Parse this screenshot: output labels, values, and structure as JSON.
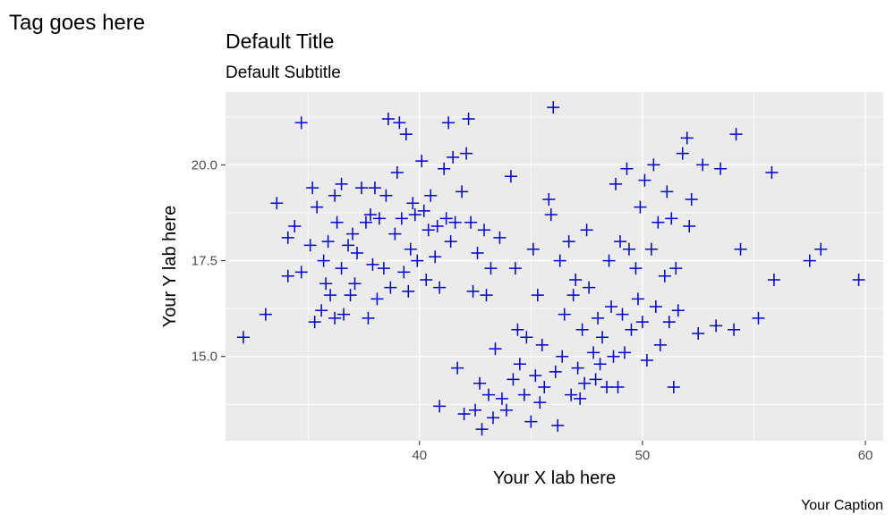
{
  "tag": "Tag goes here",
  "title": "Default Title",
  "subtitle": "Default Subtitle",
  "caption": "Your Caption",
  "colors": {
    "panel_background": "#ebebeb",
    "grid": "#ffffff",
    "points": "#0000cc",
    "tick_text": "#4d4d4d"
  },
  "chart_data": {
    "type": "scatter",
    "xlabel": "Your X lab here",
    "ylabel": "Your Y lab here",
    "xlim": [
      31.3,
      60.8
    ],
    "ylim": [
      12.8,
      21.9
    ],
    "x_ticks": [
      40,
      50,
      60
    ],
    "x_tick_labels": [
      "40",
      "50",
      "60"
    ],
    "y_ticks": [
      15.0,
      17.5,
      20.0
    ],
    "y_tick_labels": [
      "15.0",
      "17.5",
      "20.0"
    ],
    "grid": true,
    "marker": "plus",
    "points": [
      [
        32.1,
        15.5
      ],
      [
        33.1,
        16.1
      ],
      [
        33.6,
        19.0
      ],
      [
        34.1,
        17.1
      ],
      [
        34.1,
        18.1
      ],
      [
        34.4,
        18.4
      ],
      [
        34.7,
        21.1
      ],
      [
        34.7,
        17.2
      ],
      [
        35.1,
        17.9
      ],
      [
        35.2,
        19.4
      ],
      [
        35.3,
        15.9
      ],
      [
        35.4,
        18.9
      ],
      [
        35.6,
        16.2
      ],
      [
        35.7,
        17.5
      ],
      [
        35.8,
        16.9
      ],
      [
        35.9,
        18.0
      ],
      [
        36.0,
        16.6
      ],
      [
        36.2,
        16.0
      ],
      [
        36.2,
        19.2
      ],
      [
        36.3,
        18.5
      ],
      [
        36.5,
        19.5
      ],
      [
        36.5,
        17.3
      ],
      [
        36.6,
        16.1
      ],
      [
        36.8,
        17.9
      ],
      [
        36.9,
        16.6
      ],
      [
        37.0,
        18.2
      ],
      [
        37.1,
        16.9
      ],
      [
        37.2,
        17.7
      ],
      [
        37.4,
        19.4
      ],
      [
        37.6,
        18.5
      ],
      [
        37.7,
        16.0
      ],
      [
        37.8,
        18.7
      ],
      [
        37.9,
        17.4
      ],
      [
        38.0,
        19.4
      ],
      [
        38.1,
        16.5
      ],
      [
        38.2,
        18.6
      ],
      [
        38.4,
        17.3
      ],
      [
        38.5,
        19.2
      ],
      [
        38.6,
        21.2
      ],
      [
        38.7,
        16.8
      ],
      [
        38.9,
        18.2
      ],
      [
        39.0,
        19.8
      ],
      [
        39.1,
        21.1
      ],
      [
        39.2,
        18.6
      ],
      [
        39.3,
        17.2
      ],
      [
        39.4,
        20.8
      ],
      [
        39.5,
        16.7
      ],
      [
        39.6,
        17.8
      ],
      [
        39.7,
        19.0
      ],
      [
        39.8,
        18.7
      ],
      [
        39.9,
        17.5
      ],
      [
        40.1,
        20.1
      ],
      [
        40.2,
        18.8
      ],
      [
        40.3,
        17.0
      ],
      [
        40.4,
        18.3
      ],
      [
        40.5,
        19.2
      ],
      [
        40.7,
        17.6
      ],
      [
        40.8,
        18.4
      ],
      [
        40.9,
        13.7
      ],
      [
        40.9,
        16.8
      ],
      [
        41.1,
        19.9
      ],
      [
        41.2,
        18.6
      ],
      [
        41.3,
        21.1
      ],
      [
        41.4,
        18.0
      ],
      [
        41.5,
        20.2
      ],
      [
        41.6,
        18.5
      ],
      [
        41.7,
        14.7
      ],
      [
        41.9,
        19.3
      ],
      [
        42.0,
        13.5
      ],
      [
        42.1,
        20.3
      ],
      [
        42.2,
        21.2
      ],
      [
        42.3,
        18.5
      ],
      [
        42.4,
        16.7
      ],
      [
        42.5,
        13.6
      ],
      [
        42.6,
        17.7
      ],
      [
        42.7,
        14.3
      ],
      [
        42.8,
        13.1
      ],
      [
        42.9,
        18.3
      ],
      [
        43.0,
        16.6
      ],
      [
        43.1,
        14.0
      ],
      [
        43.2,
        17.3
      ],
      [
        43.3,
        13.4
      ],
      [
        43.4,
        15.2
      ],
      [
        43.6,
        18.1
      ],
      [
        43.7,
        13.9
      ],
      [
        43.9,
        13.6
      ],
      [
        44.1,
        19.7
      ],
      [
        44.2,
        14.4
      ],
      [
        44.3,
        17.3
      ],
      [
        44.4,
        15.7
      ],
      [
        44.5,
        14.8
      ],
      [
        44.7,
        14.0
      ],
      [
        44.8,
        15.5
      ],
      [
        45.0,
        13.3
      ],
      [
        45.1,
        17.8
      ],
      [
        45.2,
        14.5
      ],
      [
        45.3,
        16.6
      ],
      [
        45.4,
        13.8
      ],
      [
        45.5,
        15.3
      ],
      [
        45.6,
        14.2
      ],
      [
        45.8,
        19.1
      ],
      [
        45.9,
        18.7
      ],
      [
        46.0,
        21.5
      ],
      [
        46.1,
        14.6
      ],
      [
        46.2,
        13.2
      ],
      [
        46.3,
        17.5
      ],
      [
        46.4,
        15.0
      ],
      [
        46.5,
        16.1
      ],
      [
        46.7,
        18.0
      ],
      [
        46.8,
        14.0
      ],
      [
        46.9,
        16.6
      ],
      [
        47.0,
        17.0
      ],
      [
        47.1,
        14.7
      ],
      [
        47.2,
        13.9
      ],
      [
        47.3,
        15.7
      ],
      [
        47.4,
        14.3
      ],
      [
        47.5,
        18.3
      ],
      [
        47.6,
        16.8
      ],
      [
        47.8,
        15.1
      ],
      [
        47.9,
        14.4
      ],
      [
        48.0,
        16.0
      ],
      [
        48.1,
        14.8
      ],
      [
        48.2,
        15.5
      ],
      [
        48.4,
        14.2
      ],
      [
        48.5,
        17.5
      ],
      [
        48.6,
        16.3
      ],
      [
        48.7,
        15.0
      ],
      [
        48.8,
        19.5
      ],
      [
        48.9,
        14.2
      ],
      [
        49.0,
        18.0
      ],
      [
        49.1,
        16.1
      ],
      [
        49.2,
        15.1
      ],
      [
        49.3,
        19.9
      ],
      [
        49.4,
        17.8
      ],
      [
        49.5,
        15.7
      ],
      [
        49.7,
        17.3
      ],
      [
        49.8,
        16.5
      ],
      [
        49.9,
        18.9
      ],
      [
        50.0,
        15.9
      ],
      [
        50.1,
        19.6
      ],
      [
        50.2,
        14.9
      ],
      [
        50.4,
        17.8
      ],
      [
        50.5,
        20.0
      ],
      [
        50.6,
        16.3
      ],
      [
        50.7,
        18.5
      ],
      [
        50.8,
        15.3
      ],
      [
        51.0,
        17.1
      ],
      [
        51.1,
        19.3
      ],
      [
        51.2,
        15.9
      ],
      [
        51.3,
        18.6
      ],
      [
        51.4,
        14.2
      ],
      [
        51.5,
        17.3
      ],
      [
        51.6,
        16.2
      ],
      [
        51.8,
        20.3
      ],
      [
        52.0,
        20.7
      ],
      [
        52.1,
        18.4
      ],
      [
        52.2,
        19.1
      ],
      [
        52.5,
        15.6
      ],
      [
        52.7,
        20.0
      ],
      [
        53.3,
        15.8
      ],
      [
        53.5,
        19.9
      ],
      [
        54.1,
        15.7
      ],
      [
        54.2,
        20.8
      ],
      [
        54.4,
        17.8
      ],
      [
        55.2,
        16.0
      ],
      [
        55.8,
        19.8
      ],
      [
        55.9,
        17.0
      ],
      [
        57.5,
        17.5
      ],
      [
        58.0,
        17.8
      ],
      [
        59.7,
        17.0
      ]
    ]
  }
}
